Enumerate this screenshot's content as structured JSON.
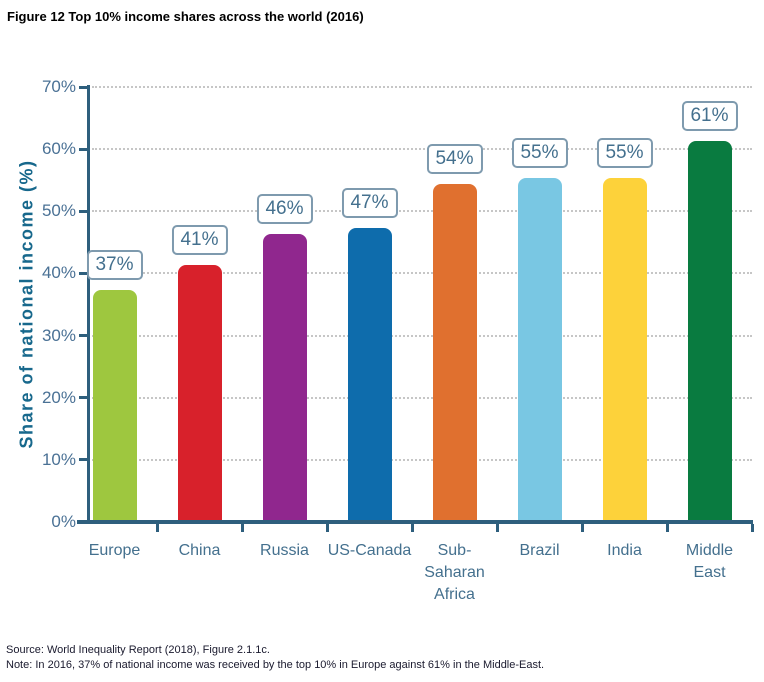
{
  "page": {
    "title": "Figure 12 Top 10% income shares across the world (2016)",
    "source_line": "Source: World Inequality Report (2018), Figure 2.1.1c.",
    "note_line": "Note: In 2016, 37% of national income was received by the top 10% in Europe against 61% in the Middle-East."
  },
  "chart_data": {
    "type": "bar",
    "title": "Figure 12 Top 10% income shares across the world (2016)",
    "xlabel": "",
    "ylabel": "Share of national income (%)",
    "ylim": [
      0,
      70
    ],
    "ytick_step": 10,
    "ytick_labels": [
      "0%",
      "10%",
      "20%",
      "30%",
      "40%",
      "50%",
      "60%",
      "70%"
    ],
    "grid": "horizontal dotted",
    "legend": "none",
    "categories": [
      "Europe",
      "China",
      "Russia",
      "US-Canada",
      "Sub-\nSaharan\nAfrica",
      "Brazil",
      "India",
      "Middle East"
    ],
    "values": [
      37,
      41,
      46,
      47,
      54,
      55,
      55,
      61
    ],
    "value_labels": [
      "37%",
      "41%",
      "46%",
      "47%",
      "54%",
      "55%",
      "55%",
      "61%"
    ],
    "bar_colors": [
      "#9ec73f",
      "#d8212b",
      "#90278e",
      "#0e6cac",
      "#e0702f",
      "#79c7e3",
      "#fdd23a",
      "#097b40"
    ],
    "axis_color": "#2e5f7d",
    "gridline_color": "#c6c6c6",
    "tick_label_color": "#4a7195",
    "category_label_color": "#44708e",
    "value_box_text_color": "#44708e",
    "value_box_border_color": "#7e9aae",
    "ylabel_color": "#17688c"
  }
}
